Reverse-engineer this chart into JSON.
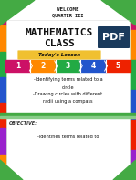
{
  "bg_color": "#ffffff",
  "welcome_text": "WELCOME",
  "quarter_text": "QUARTER III",
  "title_line1": "MATHEMATICS",
  "title_line2": "CLASS",
  "todays_lesson_label": "Today's Lesson",
  "todays_lesson_bg": "#f0c030",
  "puzzle_colors": [
    "#cc1166",
    "#ff8800",
    "#22aa44",
    "#2255cc",
    "#ee2200"
  ],
  "puzzle_numbers": [
    "1",
    "2",
    "3",
    "4",
    "5"
  ],
  "lesson_lines": [
    "-Identifying terms related to a",
    "circle",
    "-Drawing circles with different",
    "radii using a compass"
  ],
  "objective_label": "OBJECTIVE:",
  "objective_text": "-Identifies terms related to",
  "green_color": "#44aa44",
  "light_green_color": "#88cc88",
  "dark_bg_color": "#1a3a5c",
  "pdf_badge_text": "PDF",
  "left_bar_colors": [
    "#cc1166",
    "#ff8800",
    "#22aa44",
    "#2255cc",
    "#ee2200",
    "#9922cc",
    "#ff8800"
  ],
  "right_bar_colors": [
    "#cc1166",
    "#ff8800",
    "#22aa44",
    "#2255cc",
    "#ee2200",
    "#9922cc"
  ]
}
